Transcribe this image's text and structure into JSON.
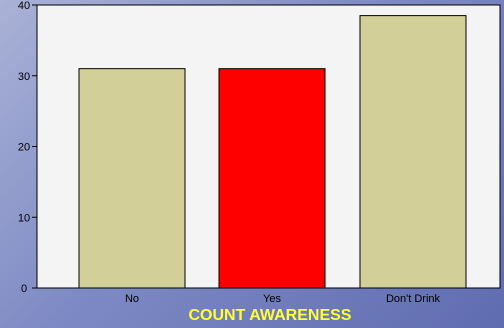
{
  "chart_data": {
    "type": "bar",
    "categories": [
      "No",
      "Yes",
      "Don't Drink"
    ],
    "values": [
      31,
      31,
      38.5
    ],
    "bar_colors": [
      "#d3cf98",
      "#ff0000",
      "#d3cf98"
    ],
    "xlabel": "COUNT AWARENESS",
    "ylabel": "",
    "ylim": [
      0,
      40
    ],
    "yticks": [
      0,
      10,
      20,
      30,
      40
    ],
    "grid": false,
    "plot_background": "#f4f4f4"
  }
}
